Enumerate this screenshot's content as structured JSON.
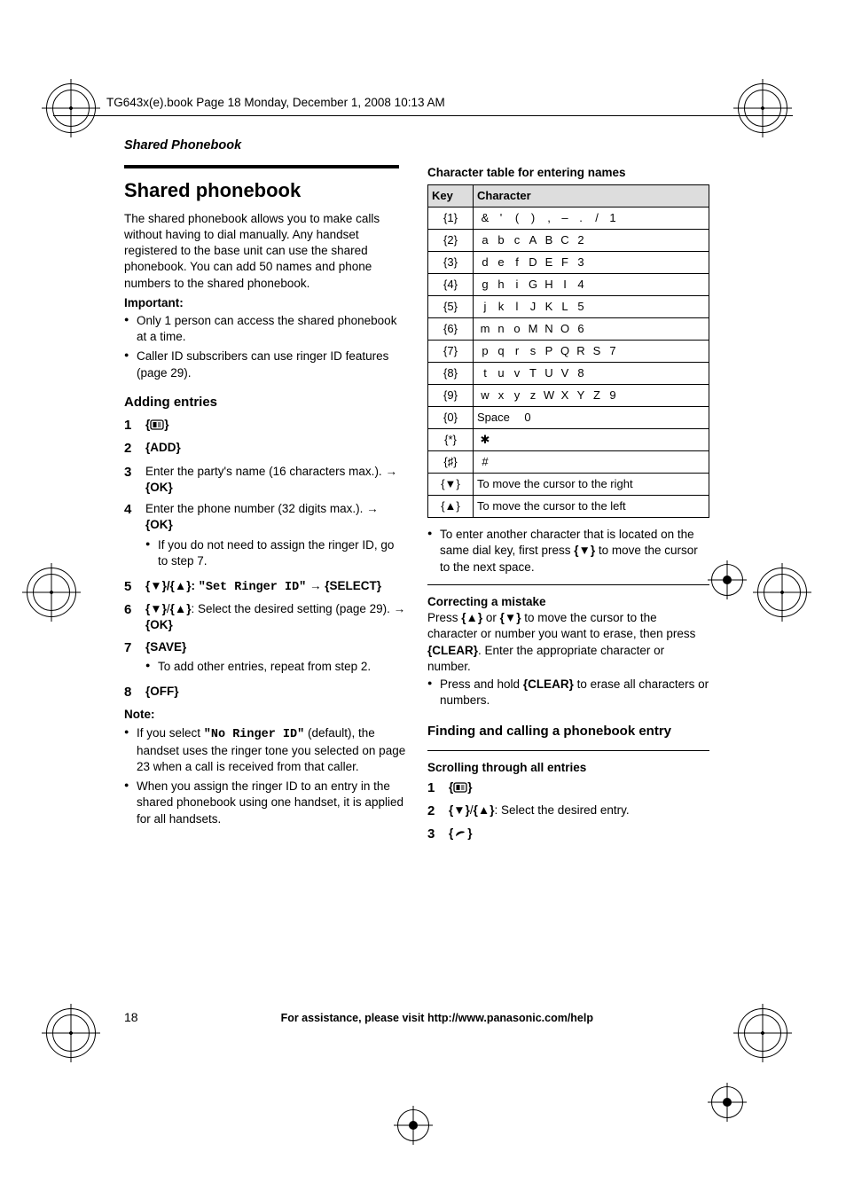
{
  "running_header": "TG643x(e).book  Page 18  Monday, December 1, 2008  10:13 AM",
  "section_path": "Shared Phonebook",
  "title": "Shared phonebook",
  "intro": "The shared phonebook allows you to make calls without having to dial manually. Any handset registered to the base unit can use the shared phonebook. You can add 50 names and phone numbers to the shared phonebook.",
  "important_label": "Important:",
  "important_items": [
    "Only 1 person can access the shared phonebook at a time.",
    "Caller ID subscribers can use ringer ID features (page 29)."
  ],
  "adding_heading": "Adding entries",
  "steps": {
    "s1_key": "{C}",
    "s2_key": "{ADD}",
    "s3": "Enter the party's name (16 characters max.). ",
    "s3_tail": " {OK}",
    "s4": "Enter the phone number (32 digits max.). ",
    "s4_tail": " {OK}",
    "s4_sub": "If you do not need to assign the ringer ID, go to step 7.",
    "s5_pre": "{▼}/{▲}: ",
    "s5_q": "\"Set Ringer ID\"",
    "s5_tail": " {SELECT}",
    "s6_pre": "{▼}/{▲}: Select the desired setting (page 29). ",
    "s6_tail": " {OK}",
    "s7": "{SAVE}",
    "s7_sub": "To add other entries, repeat from step 2.",
    "s8": "{OFF}"
  },
  "note_label": "Note:",
  "notes": [
    {
      "pre": "If you select ",
      "q": "\"No Ringer ID\"",
      "post": " (default), the handset uses the ringer tone you selected on page 23 when a call is received from that caller."
    },
    {
      "pre": "When you assign the ringer ID to an entry in the shared phonebook using one handset, it is applied for all handsets.",
      "q": "",
      "post": ""
    }
  ],
  "char_table_heading": "Character table for entering names",
  "table": {
    "head_key": "Key",
    "head_char": "Character",
    "rows": [
      {
        "key": "{1}",
        "chars": [
          "&",
          "'",
          "(",
          ")",
          ",",
          "–",
          ".",
          "/",
          "1"
        ]
      },
      {
        "key": "{2}",
        "chars": [
          "a",
          "b",
          "c",
          "A",
          "B",
          "C",
          "2"
        ]
      },
      {
        "key": "{3}",
        "chars": [
          "d",
          "e",
          "f",
          "D",
          "E",
          "F",
          "3"
        ]
      },
      {
        "key": "{4}",
        "chars": [
          "g",
          "h",
          "i",
          "G",
          "H",
          "I",
          "4"
        ]
      },
      {
        "key": "{5}",
        "chars": [
          "j",
          "k",
          "l",
          "J",
          "K",
          "L",
          "5"
        ]
      },
      {
        "key": "{6}",
        "chars": [
          "m",
          "n",
          "o",
          "M",
          "N",
          "O",
          "6"
        ]
      },
      {
        "key": "{7}",
        "chars": [
          "p",
          "q",
          "r",
          "s",
          "P",
          "Q",
          "R",
          "S",
          "7"
        ]
      },
      {
        "key": "{8}",
        "chars": [
          "t",
          "u",
          "v",
          "T",
          "U",
          "V",
          "8"
        ]
      },
      {
        "key": "{9}",
        "chars": [
          "w",
          "x",
          "y",
          "z",
          "W",
          "X",
          "Y",
          "Z",
          "9"
        ]
      },
      {
        "key": "{0}",
        "chars": [
          "Space",
          "0"
        ]
      },
      {
        "key": "{*}",
        "chars": [
          "✱"
        ]
      },
      {
        "key": "{♯}",
        "chars": [
          "#"
        ]
      },
      {
        "key": "{▼}",
        "note": "To move the cursor to the right"
      },
      {
        "key": "{▲}",
        "note": "To move the cursor to the left"
      }
    ]
  },
  "char_tip": "To enter another character that is located on the same dial key, first press {▼} to move the cursor to the next space.",
  "correcting_heading": "Correcting a mistake",
  "correcting_body": "Press {▲} or {▼} to move the cursor to the character or number you want to erase, then press {CLEAR}. Enter the appropriate character or number.",
  "correcting_sub": "Press and hold {CLEAR} to erase all characters or numbers.",
  "finding_heading": "Finding and calling a phonebook entry",
  "scroll_heading": "Scrolling through all entries",
  "find_steps": {
    "s1": "{C}",
    "s2": "{▼}/{▲}: Select the desired entry.",
    "s3": "{➥}"
  },
  "page_number": "18",
  "footer_text": "For assistance, please visit http://www.panasonic.com/help"
}
